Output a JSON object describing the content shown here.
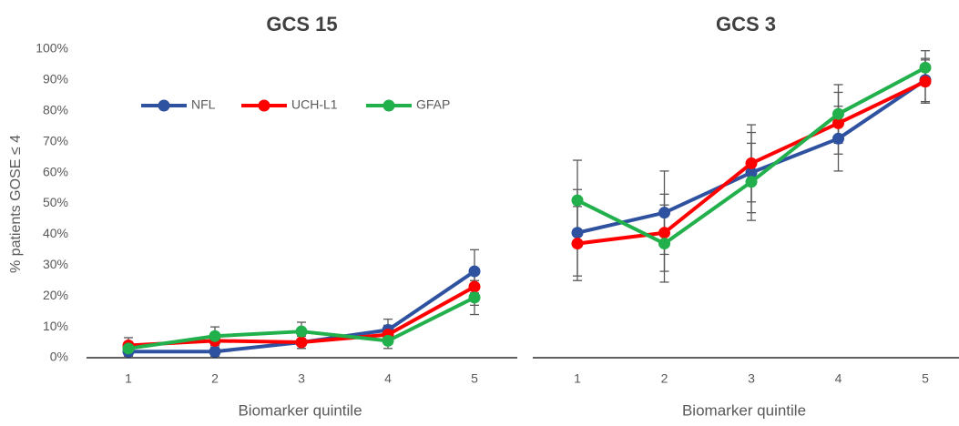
{
  "chart_data": [
    {
      "type": "line",
      "title": "GCS 15",
      "xlabel": "Biomarker quintile",
      "ylabel": "% patients GOSE ≤ 4",
      "categories": [
        "1",
        "2",
        "3",
        "4",
        "5"
      ],
      "ylim": [
        0,
        100
      ],
      "yticks": [
        {
          "value": 0,
          "label": "0%"
        },
        {
          "value": 10,
          "label": "10%"
        },
        {
          "value": 20,
          "label": "20%"
        },
        {
          "value": 30,
          "label": "30%"
        },
        {
          "value": 40,
          "label": "40%"
        },
        {
          "value": 50,
          "label": "50%"
        },
        {
          "value": 60,
          "label": "60%"
        },
        {
          "value": 70,
          "label": "70%"
        },
        {
          "value": 80,
          "label": "80%"
        },
        {
          "value": 90,
          "label": "90%"
        },
        {
          "value": 100,
          "label": "100%"
        }
      ],
      "legend": "upper left",
      "series": [
        {
          "name": "NFL",
          "color": "#2f52a0",
          "values": [
            2,
            2,
            5,
            9,
            28
          ],
          "errors": [
            1.5,
            1.5,
            2,
            3.5,
            7
          ]
        },
        {
          "name": "UCH-L1",
          "color": "#ff0000",
          "values": [
            4,
            5.5,
            5,
            7.5,
            23
          ],
          "errors": [
            2.5,
            2.5,
            2,
            3,
            6
          ]
        },
        {
          "name": "GFAP",
          "color": "#21b04b",
          "values": [
            3,
            7,
            8.5,
            5.5,
            19.5
          ],
          "errors": [
            2,
            3,
            3,
            2.5,
            5.5
          ]
        }
      ]
    },
    {
      "type": "line",
      "title": "GCS 3",
      "xlabel": "Biomarker quintile",
      "categories": [
        "1",
        "2",
        "3",
        "4",
        "5"
      ],
      "ylim": [
        0,
        100
      ],
      "series": [
        {
          "color": "#2f52a0",
          "values": [
            40.5,
            47,
            60,
            71,
            90
          ],
          "errors": [
            14,
            13.5,
            13,
            10.5,
            7
          ]
        },
        {
          "color": "#ff0000",
          "values": [
            37,
            40.5,
            63,
            76,
            89.5
          ],
          "errors": [
            12,
            12.5,
            12.5,
            10,
            7
          ]
        },
        {
          "color": "#21b04b",
          "values": [
            51,
            37,
            57,
            79,
            94
          ],
          "errors": [
            13,
            12.5,
            12.5,
            9.5,
            5.5
          ]
        }
      ]
    }
  ]
}
